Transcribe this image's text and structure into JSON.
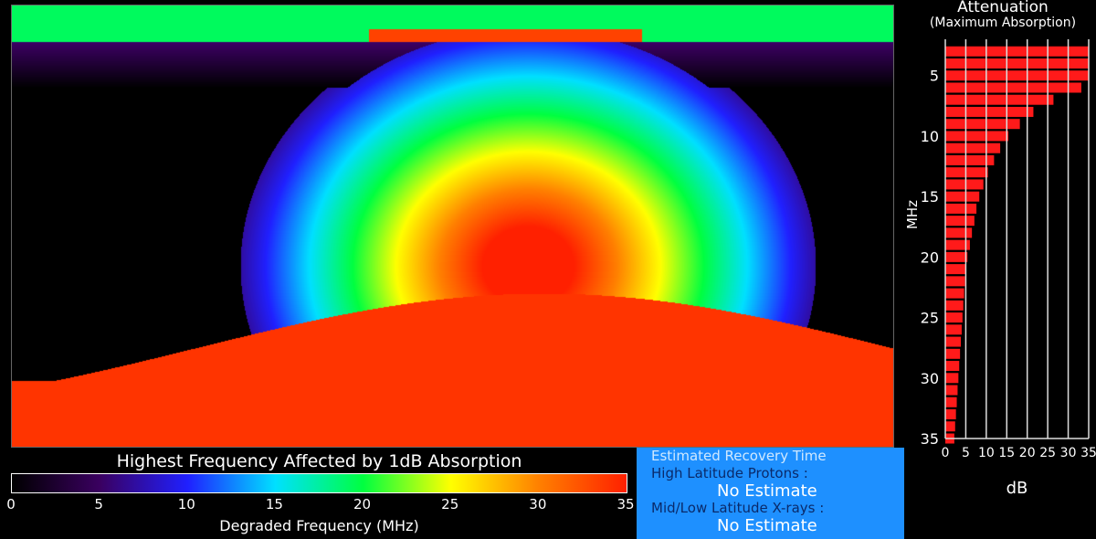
{
  "colorbar": {
    "title": "Highest Frequency Affected by 1dB Absorption",
    "label": "Degraded Frequency (MHz)",
    "ticks": [
      "0",
      "5",
      "10",
      "15",
      "20",
      "25",
      "30",
      "35"
    ],
    "colors": [
      "#000000",
      "#3a0060",
      "#2020ff",
      "#00e0ff",
      "#00ff40",
      "#ffff00",
      "#ff8000",
      "#ff2000"
    ]
  },
  "recovery": {
    "title": "Estimated Recovery Time",
    "high_label": "High Latitude Protons :",
    "high_value": "No Estimate",
    "mid_label": "Mid/Low Latitude X-rays :",
    "mid_value": "No Estimate"
  },
  "attenuation": {
    "title": "Attenuation",
    "subtitle": "(Maximum Absorption)"
  },
  "chart_data": {
    "type": "bar",
    "orientation": "horizontal",
    "ylabel": "MHz",
    "xlabel": "dB",
    "xlim": [
      0,
      35
    ],
    "ylim": [
      2,
      35
    ],
    "xticks": [
      "0",
      "5",
      "10",
      "15",
      "20",
      "25",
      "30",
      "35"
    ],
    "yticks": [
      "5",
      "10",
      "15",
      "20",
      "25",
      "30",
      "35"
    ],
    "bar_color": "#ff1a1a",
    "categories": [
      3,
      4,
      5,
      6,
      7,
      8,
      9,
      10,
      11,
      12,
      13,
      14,
      15,
      16,
      17,
      18,
      19,
      20,
      21,
      22,
      23,
      24,
      25,
      26,
      27,
      28,
      29,
      30,
      31,
      32,
      33,
      34,
      35
    ],
    "values": [
      35,
      35,
      35,
      33.2,
      26.4,
      21.5,
      18.2,
      15.4,
      13.4,
      11.9,
      10.4,
      9.3,
      8.3,
      7.6,
      7.1,
      6.5,
      6.0,
      5.4,
      5.1,
      4.8,
      4.6,
      4.4,
      4.2,
      4.0,
      3.8,
      3.6,
      3.4,
      3.2,
      3.0,
      2.8,
      2.6,
      2.4,
      2.2
    ]
  }
}
